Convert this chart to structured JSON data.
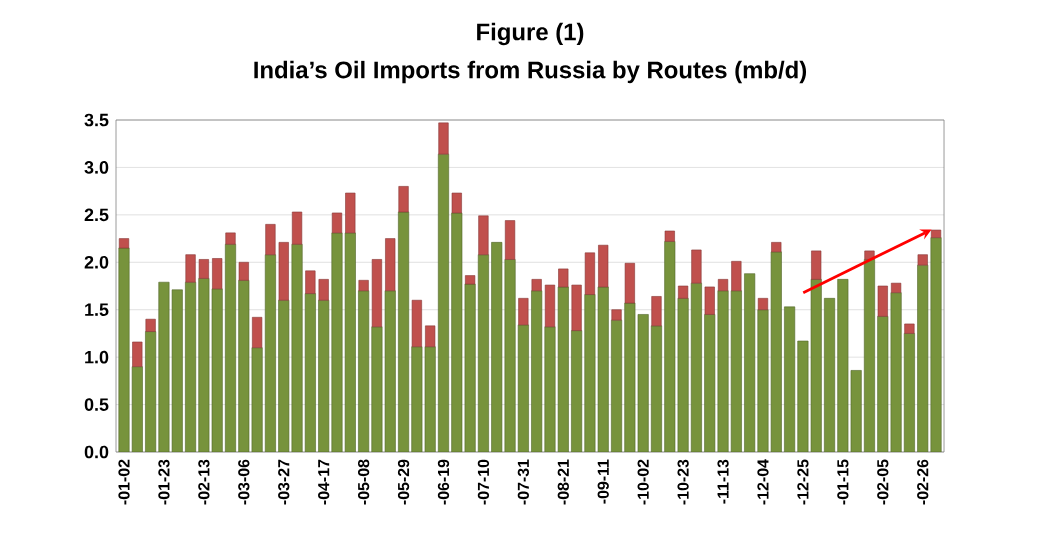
{
  "chart_data": {
    "type": "bar",
    "stacked": true,
    "title": "Figure (1)",
    "subtitle": "India’s Oil Imports from Russia by Routes (mb/d)",
    "categories": [
      "-01-02",
      null,
      null,
      "-01-23",
      null,
      null,
      "-02-13",
      null,
      null,
      "-03-06",
      null,
      null,
      "-03-27",
      null,
      null,
      "-04-17",
      null,
      null,
      "-05-08",
      null,
      null,
      "-05-29",
      null,
      null,
      "-06-19",
      null,
      null,
      "-07-10",
      null,
      null,
      "-07-31",
      null,
      null,
      "-08-21",
      null,
      null,
      "-09-11",
      null,
      null,
      "-10-02",
      null,
      null,
      "-10-23",
      null,
      null,
      "-11-13",
      null,
      null,
      "-12-04",
      null,
      null,
      "-12-25",
      null,
      null,
      "-01-15",
      null,
      null,
      "-02-05",
      null,
      null,
      "-02-26",
      null
    ],
    "series": [
      {
        "color": "#77933c",
        "values": [
          2.15,
          0.9,
          1.27,
          1.79,
          1.71,
          1.79,
          1.83,
          1.72,
          2.19,
          1.81,
          1.1,
          2.08,
          1.6,
          2.19,
          1.67,
          1.6,
          2.31,
          2.31,
          1.7,
          1.32,
          1.7,
          2.53,
          1.11,
          1.11,
          3.14,
          2.52,
          1.77,
          2.08,
          2.21,
          2.03,
          1.34,
          1.7,
          1.32,
          1.74,
          1.28,
          1.66,
          1.74,
          1.39,
          1.57,
          1.45,
          1.33,
          2.22,
          1.62,
          1.78,
          1.45,
          1.7,
          1.7,
          1.88,
          1.5,
          2.11,
          1.53,
          1.17,
          1.82,
          1.62,
          1.82,
          0.86,
          2.03,
          1.43,
          1.68,
          1.25,
          1.97,
          2.26
        ]
      },
      {
        "color": "#c0504d",
        "values": [
          0.1,
          0.26,
          0.13,
          null,
          null,
          0.29,
          0.2,
          0.32,
          0.12,
          0.19,
          0.32,
          0.32,
          0.61,
          0.34,
          0.24,
          0.22,
          0.21,
          0.42,
          0.11,
          0.71,
          0.55,
          0.27,
          0.49,
          0.22,
          0.33,
          0.21,
          0.09,
          0.41,
          null,
          0.41,
          0.28,
          0.12,
          0.44,
          0.19,
          0.48,
          0.44,
          0.44,
          0.11,
          0.42,
          null,
          0.31,
          0.11,
          0.13,
          0.35,
          0.29,
          0.12,
          0.31,
          null,
          0.12,
          0.1,
          null,
          null,
          0.3,
          null,
          null,
          null,
          0.09,
          0.32,
          0.1,
          0.1,
          0.11,
          0.08
        ]
      }
    ],
    "ylim": [
      0,
      3.5
    ],
    "yticks": [
      {
        "value": 0,
        "label": "0.0"
      },
      0.5,
      {
        "value": 1,
        "label": "1.0"
      },
      1.5,
      {
        "value": 2,
        "label": "2.0"
      },
      2.5,
      {
        "value": 3,
        "label": "3.0"
      },
      3.5
    ],
    "grid": "y"
  }
}
